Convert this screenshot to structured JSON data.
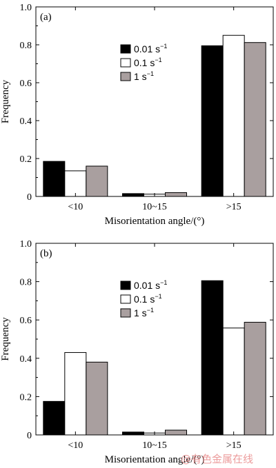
{
  "watermark": "@有色金属在线",
  "chart_data": [
    {
      "type": "bar",
      "panel_label": "(a)",
      "categories": [
        "<10",
        "10~15",
        ">15"
      ],
      "series": [
        {
          "name": "0.01 s",
          "values": [
            0.185,
            0.015,
            0.795
          ],
          "color": "#000000"
        },
        {
          "name": "0.1 s",
          "values": [
            0.135,
            0.012,
            0.85
          ],
          "color": "#ffffff"
        },
        {
          "name": "1 s",
          "values": [
            0.16,
            0.02,
            0.812
          ],
          "color": "#a99f9f"
        }
      ],
      "unit_superscript": "−1",
      "xlabel": "Misorientation angle/(°)",
      "ylabel": "Frequency",
      "ylim": [
        0,
        1.0
      ],
      "yticks": [
        "0",
        "0.2",
        "0.4",
        "0.6",
        "0.8",
        "1.0"
      ],
      "legend_position": "top-center",
      "grid": false
    },
    {
      "type": "bar",
      "panel_label": "(b)",
      "categories": [
        "<10",
        "10~15",
        ">15"
      ],
      "series": [
        {
          "name": "0.01 s",
          "values": [
            0.175,
            0.015,
            0.805
          ],
          "color": "#000000"
        },
        {
          "name": "0.1 s",
          "values": [
            0.43,
            0.01,
            0.558
          ],
          "color": "#ffffff"
        },
        {
          "name": "1 s",
          "values": [
            0.38,
            0.025,
            0.588
          ],
          "color": "#a99f9f"
        }
      ],
      "unit_superscript": "−1",
      "xlabel": "Misorientation angle/(°)",
      "ylabel": "Frequency",
      "ylim": [
        0,
        1.0
      ],
      "yticks": [
        "0",
        "0.2",
        "0.4",
        "0.6",
        "0.8",
        "1.0"
      ],
      "legend_position": "top-center",
      "grid": false
    }
  ]
}
